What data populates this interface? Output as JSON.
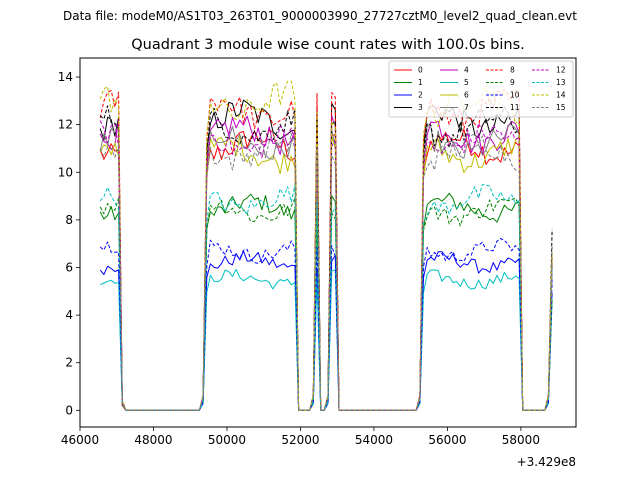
{
  "figure": {
    "suptitle": "Data file: modeM0/AS1T03_263T01_9000003990_27727cztM0_level2_quad_clean.evt",
    "x_offset_label": "+3.429e8"
  },
  "chart_data": {
    "type": "line",
    "title": "Quadrant 3 module wise count rates with 100.0s bins.",
    "xlabel": "",
    "ylabel": "",
    "xlim": [
      46000,
      59500
    ],
    "ylim": [
      -0.7,
      14.8
    ],
    "x_offset": 342900000,
    "x_ticks": [
      46000,
      48000,
      50000,
      52000,
      54000,
      56000,
      58000
    ],
    "x_tick_labels": [
      "46000",
      "48000",
      "50000",
      "52000",
      "54000",
      "56000",
      "58000"
    ],
    "y_ticks": [
      0,
      2,
      4,
      6,
      8,
      10,
      12,
      14
    ],
    "y_tick_labels": [
      "0",
      "2",
      "4",
      "6",
      "8",
      "10",
      "12",
      "14"
    ],
    "grid": false,
    "legend_position": "top-right",
    "legend_columns": 4,
    "segments": [
      {
        "start": 46550,
        "end": 47150,
        "rise_bins": 0
      },
      {
        "start": 49350,
        "end": 51950,
        "rise_bins": 2
      },
      {
        "start": 52350,
        "end": 52550,
        "rise_bins": 1
      },
      {
        "start": 52750,
        "end": 53050,
        "rise_bins": 1
      },
      {
        "start": 55250,
        "end": 58050,
        "rise_bins": 2
      },
      {
        "start": 58750,
        "end": 58850,
        "rise_bins": 1
      }
    ],
    "segment_end_values": [
      0.3,
      0,
      0,
      0,
      0,
      2.5
    ],
    "bin_width": 100,
    "series": [
      {
        "name": "0",
        "color": "#ff0000",
        "dash": "solid",
        "level": 11.1
      },
      {
        "name": "1",
        "color": "#008000",
        "dash": "solid",
        "level": 8.5
      },
      {
        "name": "2",
        "color": "#0000ff",
        "dash": "solid",
        "level": 6.2
      },
      {
        "name": "3",
        "color": "#000000",
        "dash": "solid",
        "level": 12.2
      },
      {
        "name": "4",
        "color": "#bf00bf",
        "dash": "solid",
        "level": 11.6
      },
      {
        "name": "5",
        "color": "#00bfbf",
        "dash": "solid",
        "level": 5.5
      },
      {
        "name": "6",
        "color": "#bfbf00",
        "dash": "solid",
        "level": 10.8
      },
      {
        "name": "7",
        "color": "#7f7f7f",
        "dash": "solid",
        "level": 11.2
      },
      {
        "name": "8",
        "color": "#ff0000",
        "dash": "dashed",
        "level": 12.6
      },
      {
        "name": "9",
        "color": "#008000",
        "dash": "dashed",
        "level": 8.4
      },
      {
        "name": "10",
        "color": "#0000ff",
        "dash": "dashed",
        "level": 6.7
      },
      {
        "name": "11",
        "color": "#000000",
        "dash": "dashed",
        "level": 11.9
      },
      {
        "name": "12",
        "color": "#bf00bf",
        "dash": "dashed",
        "level": 11.3
      },
      {
        "name": "13",
        "color": "#00bfbf",
        "dash": "dashed",
        "level": 8.8
      },
      {
        "name": "14",
        "color": "#bfbf00",
        "dash": "dashed",
        "level": 12.9
      },
      {
        "name": "15",
        "color": "#7f7f7f",
        "dash": "dashed",
        "level": 10.9
      }
    ]
  }
}
